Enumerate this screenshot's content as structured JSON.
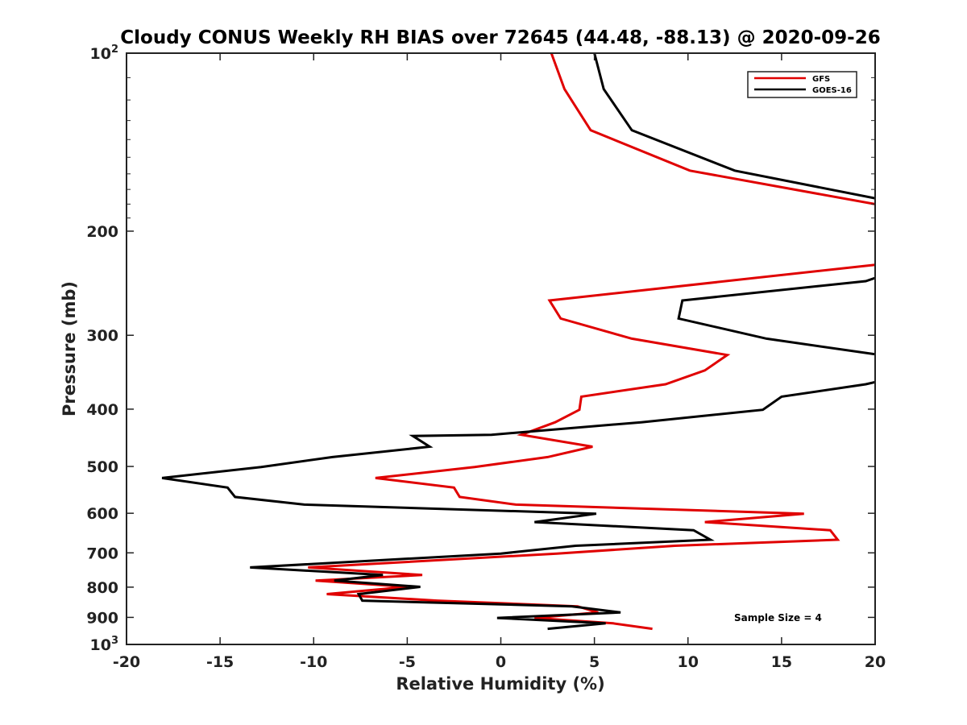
{
  "chart_data": {
    "type": "line",
    "title": "Cloudy CONUS Weekly RH BIAS over 72645 (44.48, -88.13) @ 2020-09-26",
    "xlabel": "Relative Humidity (%)",
    "ylabel": "Pressure (mb)",
    "xlim": [
      -20,
      20
    ],
    "ylim": [
      100,
      1000
    ],
    "y_scale": "log",
    "y_reversed": true,
    "xticks": [
      "-20",
      "-15",
      "-10",
      "-5",
      "0",
      "5",
      "10",
      "15",
      "20"
    ],
    "xtick_values": [
      -20,
      -15,
      -10,
      -5,
      0,
      5,
      10,
      15,
      20
    ],
    "yticks": [
      {
        "value": 100,
        "base": "10",
        "exp": "2"
      },
      {
        "value": 200,
        "label": "200"
      },
      {
        "value": 300,
        "label": "300"
      },
      {
        "value": 400,
        "label": "400"
      },
      {
        "value": 500,
        "label": "500"
      },
      {
        "value": 600,
        "label": "600"
      },
      {
        "value": 700,
        "label": "700"
      },
      {
        "value": 800,
        "label": "800"
      },
      {
        "value": 900,
        "label": "900"
      },
      {
        "value": 1000,
        "base": "10",
        "exp": "3"
      }
    ],
    "legend_position": "top-right",
    "annotation": "Sample Size = 4",
    "series": [
      {
        "name": "GFS",
        "color": "#e00000",
        "points": [
          [
            2.7,
            100
          ],
          [
            3.4,
            115
          ],
          [
            4.8,
            135
          ],
          [
            10.1,
            158
          ],
          [
            20,
            180
          ],
          [
            null,
            null
          ],
          [
            20,
            228
          ],
          [
            2.6,
            262
          ],
          [
            3.2,
            281
          ],
          [
            7.0,
            304
          ],
          [
            12.1,
            324
          ],
          [
            10.9,
            344
          ],
          [
            8.8,
            363
          ],
          [
            4.3,
            381
          ],
          [
            4.2,
            401
          ],
          [
            2.9,
            421
          ],
          [
            1.1,
            442
          ],
          [
            4.9,
            463
          ],
          [
            2.5,
            482
          ],
          [
            -1.4,
            501
          ],
          [
            -6.7,
            523
          ],
          [
            -2.5,
            543
          ],
          [
            -2.2,
            563
          ],
          [
            0.8,
            580
          ],
          [
            16.2,
            601
          ],
          [
            10.9,
            621
          ],
          [
            17.6,
            641
          ],
          [
            18.0,
            665
          ],
          [
            9.3,
            681
          ],
          [
            3.0,
            702
          ],
          [
            -10.3,
            741
          ],
          [
            -4.2,
            763
          ],
          [
            -9.9,
            780
          ],
          [
            -5.0,
            799
          ],
          [
            -9.3,
            822
          ],
          [
            -3.4,
            843
          ],
          [
            4.1,
            862
          ],
          [
            5.2,
            883
          ],
          [
            1.8,
            902
          ],
          [
            6.0,
            921
          ],
          [
            8.1,
            941
          ]
        ]
      },
      {
        "name": "GOES-16",
        "color": "#000000",
        "points": [
          [
            5.0,
            100
          ],
          [
            5.5,
            115
          ],
          [
            7.0,
            135
          ],
          [
            12.5,
            158
          ],
          [
            20,
            176
          ],
          [
            null,
            null
          ],
          [
            20,
            240
          ],
          [
            19.5,
            243
          ],
          [
            9.7,
            262
          ],
          [
            9.5,
            281
          ],
          [
            14.2,
            304
          ],
          [
            20,
            323
          ],
          [
            null,
            null
          ],
          [
            20,
            360
          ],
          [
            19.5,
            363
          ],
          [
            15.0,
            381
          ],
          [
            14.0,
            401
          ],
          [
            7.5,
            421
          ],
          [
            -0.5,
            442
          ],
          [
            -4.7,
            444
          ],
          [
            -3.8,
            463
          ],
          [
            -9.0,
            482
          ],
          [
            -12.8,
            501
          ],
          [
            -18.1,
            523
          ],
          [
            -14.6,
            543
          ],
          [
            -14.2,
            563
          ],
          [
            -10.5,
            580
          ],
          [
            5.1,
            601
          ],
          [
            1.8,
            621
          ],
          [
            10.3,
            641
          ],
          [
            11.2,
            665
          ],
          [
            4.0,
            681
          ],
          [
            0,
            702
          ],
          [
            -13.4,
            741
          ],
          [
            -6.3,
            763
          ],
          [
            -8.9,
            780
          ],
          [
            -4.3,
            799
          ],
          [
            -7.6,
            822
          ],
          [
            -7.4,
            843
          ],
          [
            3.8,
            862
          ],
          [
            6.4,
            883
          ],
          [
            -0.2,
            902
          ],
          [
            5.6,
            921
          ],
          [
            2.5,
            941
          ]
        ]
      }
    ]
  }
}
